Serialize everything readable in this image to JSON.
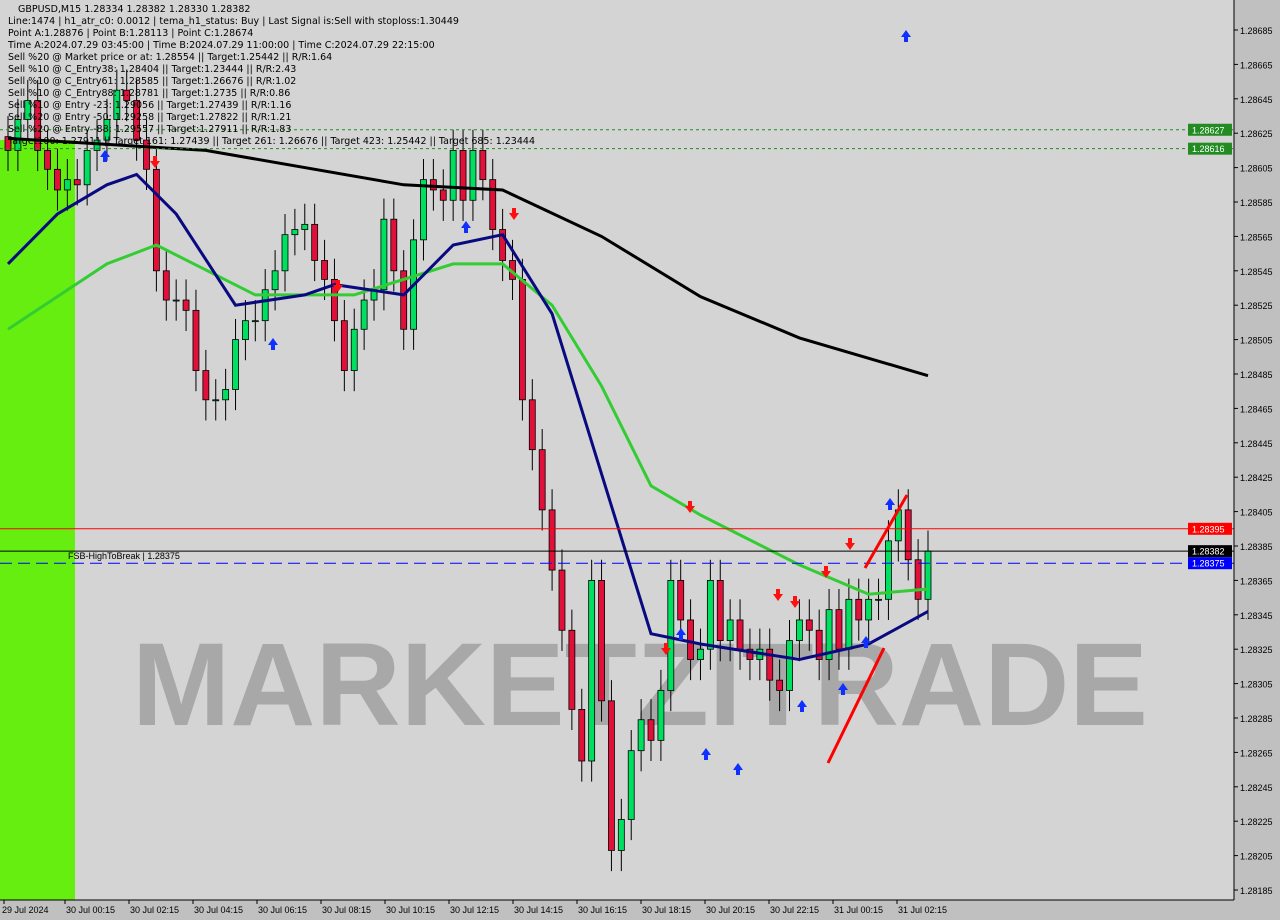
{
  "header": {
    "title": "GBPUSD,M15  1.28334 1.28382 1.28330 1.28382",
    "lines": [
      "Line:1474 | h1_atr_c0: 0.0012 | tema_h1_status: Buy | Last Signal is:Sell with stoploss:1.30449",
      "Point A:1.28876 | Point B:1.28113 | Point C:1.28674",
      "Time A:2024.07.29 03:45:00 | Time B:2024.07.29 11:00:00 | Time C:2024.07.29 22:15:00",
      "Sell %20 @ Market price or at: 1.28554 || Target:1.25442 || R/R:1.64",
      "Sell %10 @ C_Entry38: 1.28404 || Target:1.23444 || R/R:2.43",
      "Sell %10 @ C_Entry61: 1.28585 || Target:1.26676 || R/R:1.02",
      "Sell %10 @ C_Entry88: 1.28781 || Target:1.2735 || R/R:0.86",
      "Sell %10 @ Entry -23: 1.29056 || Target:1.27439 || R/R:1.16",
      "Sell %20 @ Entry -50: 1.29258 || Target:1.27822 || R/R:1.21",
      "Sell %20 @ Entry -88: 1.29557 || Target:1.27911 || R/R:1.83",
      "Target100: 1.27911 || Target 161: 1.27439 || Target 261: 1.26676 || Target 423: 1.25442 || Target 685: 1.23444"
    ]
  },
  "watermark": "MARKETZITRADE",
  "colors": {
    "background": "#c0c0c0",
    "bull": "#00e060",
    "bear": "#e0103a",
    "ma_long": "#000000",
    "ma_mid": "#33cc33",
    "ma_fast": "#0a0a80",
    "zone": "#66ee11",
    "signal_up": "#1030ff",
    "signal_down": "#ff1010"
  },
  "chart_data": {
    "type": "candlestick",
    "symbol": "GBPUSD",
    "timeframe": "M15",
    "ylim": [
      1.2817,
      1.287
    ],
    "y_ticks": [
      "1.28685",
      "1.28665",
      "1.28645",
      "1.28625",
      "1.28605",
      "1.28585",
      "1.28565",
      "1.28545",
      "1.28525",
      "1.28505",
      "1.28485",
      "1.28465",
      "1.28445",
      "1.28425",
      "1.28405",
      "1.28385",
      "1.28365",
      "1.28345",
      "1.28325",
      "1.28305",
      "1.28285",
      "1.28265",
      "1.28245",
      "1.28225",
      "1.28205",
      "1.28185"
    ],
    "x_ticks": [
      "29 Jul 2024",
      "30 Jul 00:15",
      "30 Jul 02:15",
      "30 Jul 04:15",
      "30 Jul 06:15",
      "30 Jul 08:15",
      "30 Jul 10:15",
      "30 Jul 12:15",
      "30 Jul 14:15",
      "30 Jul 16:15",
      "30 Jul 18:15",
      "30 Jul 20:15",
      "30 Jul 22:15",
      "31 Jul 00:15",
      "31 Jul 02:15"
    ],
    "closes": [
      1.28615,
      1.28633,
      1.28644,
      1.28615,
      1.28604,
      1.28592,
      1.28598,
      1.28595,
      1.28615,
      1.28621,
      1.28633,
      1.2865,
      1.28644,
      1.28621,
      1.28604,
      1.28545,
      1.28528,
      1.28528,
      1.28522,
      1.28487,
      1.2847,
      1.2847,
      1.28476,
      1.28505,
      1.28516,
      1.28516,
      1.28534,
      1.28545,
      1.28566,
      1.28569,
      1.28572,
      1.28551,
      1.2854,
      1.28516,
      1.28487,
      1.28511,
      1.28528,
      1.28534,
      1.28575,
      1.28545,
      1.28511,
      1.28563,
      1.28598,
      1.28592,
      1.28586,
      1.28615,
      1.28586,
      1.28615,
      1.28598,
      1.28569,
      1.28551,
      1.2854,
      1.2847,
      1.28441,
      1.28406,
      1.28371,
      1.28336,
      1.2829,
      1.2826,
      1.28365,
      1.28295,
      1.28208,
      1.28226,
      1.28266,
      1.28284,
      1.28272,
      1.28301,
      1.28365,
      1.28342,
      1.28319,
      1.28325,
      1.28365,
      1.2833,
      1.28342,
      1.28325,
      1.28319,
      1.28325,
      1.28307,
      1.28301,
      1.2833,
      1.28342,
      1.28336,
      1.28319,
      1.28348,
      1.28325,
      1.28354,
      1.28342,
      1.28354,
      1.28354,
      1.28388,
      1.28406,
      1.28377,
      1.28354,
      1.28382
    ],
    "horizontal_lines": [
      {
        "label": "1.28627",
        "price": 1.28627,
        "color": "#228b22",
        "style": "dotted"
      },
      {
        "label": "1.28616",
        "price": 1.28616,
        "color": "#228b22",
        "style": "dotted"
      },
      {
        "label": "1.28395",
        "price": 1.28395,
        "color": "#ff0000",
        "style": "solid"
      },
      {
        "label": "1.28382",
        "price": 1.28382,
        "color": "#000000",
        "style": "solid"
      },
      {
        "label": "1.28375",
        "price": 1.28375,
        "color": "#0000ff",
        "style": "dashed",
        "text": "FSB-HighToBreak | 1.28375"
      }
    ],
    "series": [
      {
        "role": "long-ma",
        "points": [
          [
            0,
            1.28622
          ],
          [
            20,
            1.28615
          ],
          [
            40,
            1.28595
          ],
          [
            50,
            1.28592
          ],
          [
            60,
            1.28565
          ],
          [
            70,
            1.2853
          ],
          [
            80,
            1.28506
          ],
          [
            93,
            1.28484
          ]
        ]
      },
      {
        "role": "mid-ma",
        "points": [
          [
            0,
            1.28511
          ],
          [
            10,
            1.28549
          ],
          [
            15,
            1.2856
          ],
          [
            25,
            1.28531
          ],
          [
            35,
            1.28531
          ],
          [
            45,
            1.28549
          ],
          [
            50,
            1.28549
          ],
          [
            55,
            1.28525
          ],
          [
            60,
            1.28478
          ],
          [
            65,
            1.2842
          ],
          [
            70,
            1.28403
          ],
          [
            80,
            1.28374
          ],
          [
            87,
            1.28357
          ],
          [
            93,
            1.2836
          ]
        ]
      },
      {
        "role": "fast-ma",
        "points": [
          [
            0,
            1.28549
          ],
          [
            5,
            1.28578
          ],
          [
            10,
            1.28595
          ],
          [
            13,
            1.28601
          ],
          [
            17,
            1.28578
          ],
          [
            23,
            1.28525
          ],
          [
            30,
            1.28531
          ],
          [
            33,
            1.28537
          ],
          [
            40,
            1.28531
          ],
          [
            45,
            1.2856
          ],
          [
            50,
            1.28566
          ],
          [
            55,
            1.2852
          ],
          [
            60,
            1.28427
          ],
          [
            65,
            1.28334
          ],
          [
            70,
            1.28328
          ],
          [
            80,
            1.28319
          ],
          [
            87,
            1.28328
          ],
          [
            93,
            1.28347
          ]
        ]
      }
    ]
  }
}
